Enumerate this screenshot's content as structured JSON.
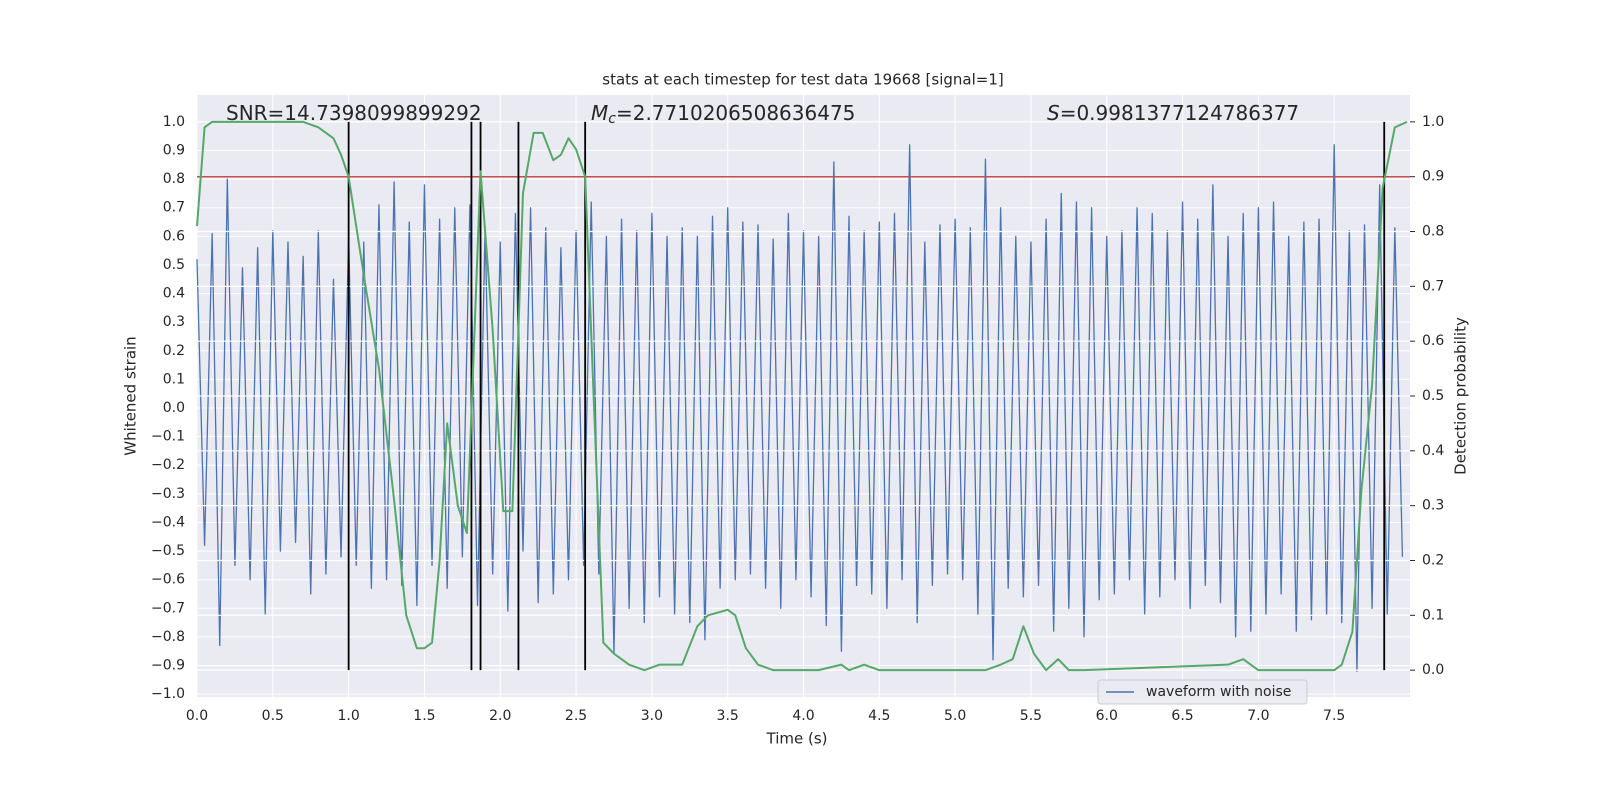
{
  "chart_data": {
    "type": "line",
    "title": "stats at each timestep for test data 19668 [signal=1]",
    "xlabel": "Time (s)",
    "ylabel": "Whitened strain",
    "y2label": "Detection probability",
    "annotations": [
      {
        "text": "SNR=14.7398099899292"
      },
      {
        "symbol": "M",
        "subscript": "c",
        "text": "=2.7710206508636475"
      },
      {
        "symbol": "S",
        "text": "=0.9981377124786377"
      }
    ],
    "xlim": [
      0,
      8
    ],
    "ylim": [
      -1.01,
      1.094
    ],
    "y2lim": [
      -0.049,
      1.049
    ],
    "xticks": [
      {
        "value": 0,
        "label": "0.0"
      },
      0.5,
      {
        "value": 1,
        "label": "1.0"
      },
      1.5,
      {
        "value": 2,
        "label": "2.0"
      },
      2.5,
      {
        "value": 3,
        "label": "3.0"
      },
      3.5,
      {
        "value": 4,
        "label": "4.0"
      },
      4.5,
      {
        "value": 5,
        "label": "5.0"
      },
      5.5,
      {
        "value": 6,
        "label": "6.0"
      },
      6.5,
      {
        "value": 7,
        "label": "7.0"
      },
      7.5
    ],
    "yticks": [
      {
        "value": -1,
        "label": "−1.0"
      },
      {
        "value": -0.9,
        "label": "−0.9"
      },
      {
        "value": -0.8,
        "label": "−0.8"
      },
      {
        "value": -0.7,
        "label": "−0.7"
      },
      {
        "value": -0.6,
        "label": "−0.6"
      },
      {
        "value": -0.5,
        "label": "−0.5"
      },
      {
        "value": -0.4,
        "label": "−0.4"
      },
      {
        "value": -0.3,
        "label": "−0.3"
      },
      {
        "value": -0.2,
        "label": "−0.2"
      },
      {
        "value": -0.1,
        "label": "−0.1"
      },
      {
        "value": 0,
        "label": "0.0"
      },
      0.1,
      0.2,
      0.3,
      0.4,
      0.5,
      0.6,
      0.7,
      0.8,
      0.9,
      {
        "value": 1,
        "label": "1.0"
      }
    ],
    "y2ticks": [
      {
        "value": 0,
        "label": "0.0"
      },
      0.1,
      0.2,
      0.3,
      0.4,
      0.5,
      0.6,
      0.7,
      0.8,
      0.9,
      {
        "value": 1,
        "label": "1.0"
      }
    ],
    "grid": true,
    "legend": "lower right",
    "series": [
      {
        "name": "waveform with noise",
        "color": "#4c72b0",
        "x": [
          0,
          0.05,
          0.1,
          0.15,
          0.2,
          0.25,
          0.3,
          0.35,
          0.4,
          0.45,
          0.5,
          0.55,
          0.6,
          0.65,
          0.7,
          0.75,
          0.8,
          0.85,
          0.9,
          0.95,
          1,
          1.05,
          1.1,
          1.15,
          1.2,
          1.25,
          1.3,
          1.35,
          1.4,
          1.45,
          1.5,
          1.55,
          1.6,
          1.65,
          1.7,
          1.75,
          1.8,
          1.85,
          1.9,
          1.95,
          2,
          2.05,
          2.1,
          2.15,
          2.2,
          2.25,
          2.3,
          2.35,
          2.4,
          2.45,
          2.5,
          2.55,
          2.6,
          2.65,
          2.7,
          2.75,
          2.8,
          2.85,
          2.9,
          2.95,
          3,
          3.05,
          3.1,
          3.15,
          3.2,
          3.25,
          3.3,
          3.35,
          3.4,
          3.45,
          3.5,
          3.55,
          3.6,
          3.65,
          3.7,
          3.75,
          3.8,
          3.85,
          3.9,
          3.95,
          4,
          4.05,
          4.1,
          4.15,
          4.2,
          4.25,
          4.3,
          4.35,
          4.4,
          4.45,
          4.5,
          4.55,
          4.6,
          4.65,
          4.7,
          4.75,
          4.8,
          4.85,
          4.9,
          4.95,
          5,
          5.05,
          5.1,
          5.15,
          5.2,
          5.25,
          5.3,
          5.35,
          5.4,
          5.45,
          5.5,
          5.55,
          5.6,
          5.65,
          5.7,
          5.75,
          5.8,
          5.85,
          5.9,
          5.95,
          6,
          6.05,
          6.1,
          6.15,
          6.2,
          6.25,
          6.3,
          6.35,
          6.4,
          6.45,
          6.5,
          6.55,
          6.6,
          6.65,
          6.7,
          6.75,
          6.8,
          6.85,
          6.9,
          6.95,
          7,
          7.05,
          7.1,
          7.15,
          7.2,
          7.25,
          7.3,
          7.35,
          7.4,
          7.45,
          7.5,
          7.55,
          7.6,
          7.65,
          7.7,
          7.75,
          7.8,
          7.85,
          7.9,
          7.95
        ],
        "values": [
          0.52,
          -0.48,
          0.61,
          -0.83,
          0.8,
          -0.55,
          0.49,
          -0.6,
          0.56,
          -0.72,
          0.62,
          -0.5,
          0.58,
          -0.47,
          0.53,
          -0.65,
          0.62,
          -0.58,
          0.45,
          -0.52,
          0.6,
          -0.55,
          0.58,
          -0.63,
          0.71,
          -0.6,
          0.79,
          -0.62,
          0.65,
          -0.69,
          0.78,
          -0.55,
          0.66,
          -0.63,
          0.7,
          -0.52,
          0.71,
          -0.69,
          0.63,
          -0.58,
          0.58,
          -0.71,
          0.68,
          -0.5,
          0.7,
          -0.68,
          0.63,
          -0.65,
          0.56,
          -0.6,
          0.62,
          -0.55,
          0.72,
          -0.58,
          0.6,
          -0.86,
          0.66,
          -0.7,
          0.62,
          -0.75,
          0.68,
          -0.66,
          0.6,
          -0.72,
          0.63,
          -0.75,
          0.6,
          -0.81,
          0.67,
          -0.63,
          0.7,
          -0.6,
          0.65,
          -0.58,
          0.64,
          -0.63,
          0.59,
          -0.7,
          0.68,
          -0.6,
          0.62,
          -0.66,
          0.6,
          -0.76,
          0.86,
          -0.85,
          0.67,
          -0.62,
          0.62,
          -0.65,
          0.65,
          -0.7,
          0.68,
          -0.6,
          0.92,
          -0.75,
          0.58,
          -0.62,
          0.64,
          -0.58,
          0.66,
          -0.6,
          0.63,
          -0.72,
          0.87,
          -0.88,
          0.7,
          -0.63,
          0.6,
          -0.66,
          0.58,
          -0.62,
          0.66,
          -0.78,
          0.75,
          -0.7,
          0.72,
          -0.8,
          0.7,
          -0.67,
          0.6,
          -0.65,
          0.62,
          -0.6,
          0.7,
          -0.72,
          0.68,
          -0.66,
          0.62,
          -0.6,
          0.72,
          -0.7,
          0.66,
          -0.62,
          0.78,
          -0.68,
          0.6,
          -0.8,
          0.68,
          -0.78,
          0.7,
          -0.72,
          0.72,
          -0.65,
          0.6,
          -0.78,
          0.65,
          -0.74,
          0.66,
          -0.72,
          0.92,
          -0.75,
          0.62,
          -0.92,
          0.64,
          -0.7,
          0.78,
          -0.72,
          0.63,
          -0.52
        ]
      },
      {
        "color": "#55a868",
        "axis": "y2",
        "x": [
          0,
          0.05,
          0.1,
          0.2,
          0.3,
          0.4,
          0.5,
          0.6,
          0.7,
          0.8,
          0.9,
          0.95,
          1,
          1.1,
          1.2,
          1.3,
          1.38,
          1.45,
          1.5,
          1.55,
          1.6,
          1.65,
          1.72,
          1.78,
          1.87,
          1.95,
          2.02,
          2.08,
          2.15,
          2.22,
          2.28,
          2.35,
          2.4,
          2.45,
          2.5,
          2.56,
          2.62,
          2.68,
          2.75,
          2.85,
          2.95,
          3.05,
          3.2,
          3.3,
          3.37,
          3.5,
          3.55,
          3.62,
          3.7,
          3.8,
          4.1,
          4.25,
          4.3,
          4.4,
          4.5,
          4.7,
          4.9,
          5.2,
          5.3,
          5.38,
          5.45,
          5.52,
          5.6,
          5.68,
          5.75,
          5.85,
          6.8,
          6.9,
          7,
          7.5,
          7.55,
          7.62,
          7.68,
          7.75,
          7.82,
          7.9,
          7.98
        ],
        "values": [
          0.81,
          0.99,
          1.0,
          1.0,
          1.0,
          1.0,
          1.0,
          1.0,
          1.0,
          0.99,
          0.97,
          0.94,
          0.9,
          0.72,
          0.55,
          0.31,
          0.1,
          0.04,
          0.04,
          0.05,
          0.2,
          0.45,
          0.3,
          0.25,
          0.91,
          0.62,
          0.29,
          0.29,
          0.87,
          0.98,
          0.98,
          0.93,
          0.94,
          0.97,
          0.95,
          0.9,
          0.47,
          0.05,
          0.03,
          0.01,
          0.0,
          0.01,
          0.01,
          0.08,
          0.1,
          0.11,
          0.1,
          0.04,
          0.01,
          0.0,
          0.0,
          0.01,
          0.0,
          0.01,
          0.0,
          0.0,
          0.0,
          0.0,
          0.01,
          0.02,
          0.08,
          0.03,
          0.0,
          0.02,
          0.0,
          0.0,
          0.01,
          0.02,
          0.0,
          0.0,
          0.01,
          0.07,
          0.33,
          0.52,
          0.88,
          0.99,
          1.0
        ]
      }
    ],
    "hlines": {
      "y": [
        0.9
      ],
      "axis": "y2",
      "color": "#c44e52"
    },
    "vlines": {
      "x": [
        1.0,
        1.81,
        1.87,
        2.12,
        2.56,
        7.83
      ],
      "ymin": 0,
      "ymax": 1,
      "axis": "y2",
      "color": "#000000"
    }
  }
}
